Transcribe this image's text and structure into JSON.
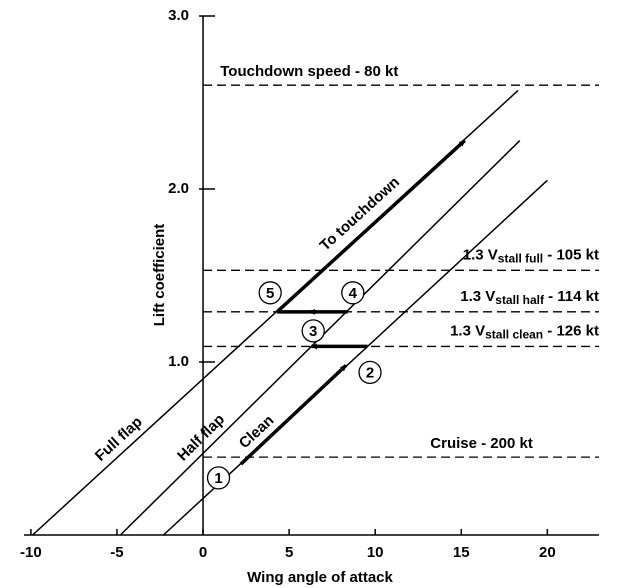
{
  "chart_data": {
    "type": "line",
    "x_label": "Wing angle of attack",
    "y_label": "Lift coefficient",
    "xlim": [
      -10.4,
      23
    ],
    "ylim": [
      0,
      3.0
    ],
    "xticks": [
      -10,
      -5,
      0,
      5,
      10,
      15,
      20
    ],
    "yticks": [
      {
        "value": 1,
        "label": "1.0"
      },
      {
        "value": 2,
        "label": "2.0"
      },
      {
        "value": 3,
        "label": "3.0"
      }
    ],
    "color": "#000000",
    "series": [
      {
        "name": "Full flap",
        "x": [
          -9.9,
          18.3
        ],
        "values": [
          0,
          2.57
        ]
      },
      {
        "name": "Half flap",
        "x": [
          -4.8,
          18.4
        ],
        "values": [
          0,
          2.28
        ]
      },
      {
        "name": "Clean",
        "x": [
          -2.3,
          20
        ],
        "values": [
          0,
          2.05
        ]
      }
    ],
    "reference_lines": [
      {
        "value": 2.6,
        "label": "Touchdown speed - 80 kt"
      },
      {
        "value": 1.53,
        "label": "1.3 V",
        "subscript": "stall full",
        "suffix": " - 105 kt"
      },
      {
        "value": 1.29,
        "label": "1.3 V",
        "subscript": "stall half",
        "suffix": " - 114 kt"
      },
      {
        "value": 1.09,
        "label": "1.3 V",
        "subscript": "stall clean",
        "suffix": " - 126 kt"
      },
      {
        "value": 0.45,
        "label": "Cruise - 200 kt"
      }
    ],
    "arrows": [
      {
        "x": [
          2.2,
          8.3
        ],
        "y": [
          0.41,
          0.98
        ],
        "head": true
      },
      {
        "x": [
          9.55,
          6.3
        ],
        "y": [
          1.09,
          1.09
        ],
        "head": true
      },
      {
        "x": [
          8.4,
          6.2
        ],
        "y": [
          1.29,
          1.29
        ],
        "head": true
      },
      {
        "x": [
          6.6,
          4.3
        ],
        "y": [
          1.29,
          1.29
        ],
        "head": false
      },
      {
        "x": [
          4.3,
          15.2
        ],
        "y": [
          1.29,
          2.28
        ],
        "head": true,
        "label": "To touchdown"
      }
    ],
    "points": [
      {
        "label": "1",
        "x": 0.9,
        "y": 0.33
      },
      {
        "label": "2",
        "x": 9.7,
        "y": 0.94
      },
      {
        "label": "3",
        "x": 6.4,
        "y": 1.18
      },
      {
        "label": "4",
        "x": 8.7,
        "y": 1.4
      },
      {
        "label": "5",
        "x": 3.9,
        "y": 1.4
      }
    ]
  }
}
